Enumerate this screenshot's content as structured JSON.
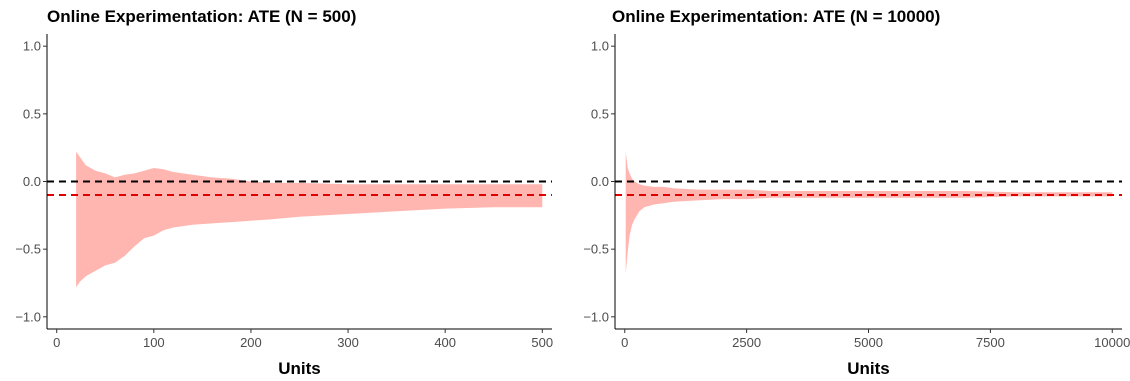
{
  "chart_data": [
    {
      "type": "area",
      "title": "Online Experimentation: ATE (N = 500)",
      "xlabel": "Units",
      "ylabel": "",
      "xlim": [
        0,
        500
      ],
      "ylim": [
        -1.0,
        1.0
      ],
      "x_ticks": [
        0,
        100,
        200,
        300,
        400,
        500
      ],
      "y_ticks": [
        -1.0,
        -0.5,
        0.0,
        0.5,
        1.0
      ],
      "x_tick_labels": [
        "0",
        "100",
        "200",
        "300",
        "400",
        "500"
      ],
      "y_tick_labels": [
        "−1.0",
        "−0.5",
        "0.0",
        "0.5",
        "1.0"
      ],
      "grid": false,
      "reference_lines": [
        {
          "y": 0.0,
          "color": "#000000",
          "style": "dashed"
        },
        {
          "y": -0.1,
          "color": "#e00000",
          "style": "dashed"
        }
      ],
      "band_color": "#ffb6b0",
      "band": {
        "x": [
          20,
          24,
          30,
          40,
          50,
          60,
          70,
          80,
          90,
          100,
          110,
          120,
          140,
          160,
          180,
          200,
          220,
          250,
          300,
          350,
          400,
          450,
          500
        ],
        "upper": [
          0.22,
          0.18,
          0.12,
          0.08,
          0.06,
          0.03,
          0.05,
          0.06,
          0.08,
          0.1,
          0.09,
          0.07,
          0.05,
          0.03,
          0.02,
          0.0,
          -0.01,
          -0.01,
          -0.02,
          -0.02,
          -0.02,
          -0.02,
          -0.02
        ],
        "lower": [
          -0.78,
          -0.74,
          -0.7,
          -0.66,
          -0.62,
          -0.6,
          -0.55,
          -0.48,
          -0.42,
          -0.4,
          -0.36,
          -0.34,
          -0.32,
          -0.31,
          -0.3,
          -0.29,
          -0.28,
          -0.26,
          -0.24,
          -0.22,
          -0.2,
          -0.19,
          -0.19
        ]
      }
    },
    {
      "type": "area",
      "title": "Online Experimentation: ATE (N = 10000)",
      "xlabel": "Units",
      "ylabel": "",
      "xlim": [
        0,
        10000
      ],
      "ylim": [
        -1.0,
        1.0
      ],
      "x_ticks": [
        0,
        2500,
        5000,
        7500,
        10000
      ],
      "y_ticks": [
        -1.0,
        -0.5,
        0.0,
        0.5,
        1.0
      ],
      "x_tick_labels": [
        "0",
        "2500",
        "5000",
        "7500",
        "10000"
      ],
      "y_tick_labels": [
        "−1.0",
        "−0.5",
        "0.0",
        "0.5",
        "1.0"
      ],
      "grid": false,
      "reference_lines": [
        {
          "y": 0.0,
          "color": "#000000",
          "style": "dashed"
        },
        {
          "y": -0.1,
          "color": "#e00000",
          "style": "dashed"
        }
      ],
      "band_color": "#ffb6b0",
      "band": {
        "x": [
          20,
          60,
          100,
          150,
          200,
          300,
          400,
          600,
          800,
          1000,
          1500,
          2000,
          2500,
          3000,
          4000,
          5000,
          6000,
          7000,
          8000,
          9000,
          10000
        ],
        "upper": [
          0.22,
          0.1,
          0.06,
          0.02,
          0.0,
          -0.02,
          -0.03,
          -0.04,
          -0.04,
          -0.05,
          -0.06,
          -0.06,
          -0.06,
          -0.07,
          -0.07,
          -0.07,
          -0.07,
          -0.07,
          -0.08,
          -0.08,
          -0.08
        ],
        "lower": [
          -0.68,
          -0.52,
          -0.4,
          -0.32,
          -0.28,
          -0.22,
          -0.19,
          -0.17,
          -0.16,
          -0.15,
          -0.14,
          -0.13,
          -0.13,
          -0.12,
          -0.12,
          -0.12,
          -0.12,
          -0.12,
          -0.11,
          -0.11,
          -0.11
        ]
      }
    }
  ]
}
